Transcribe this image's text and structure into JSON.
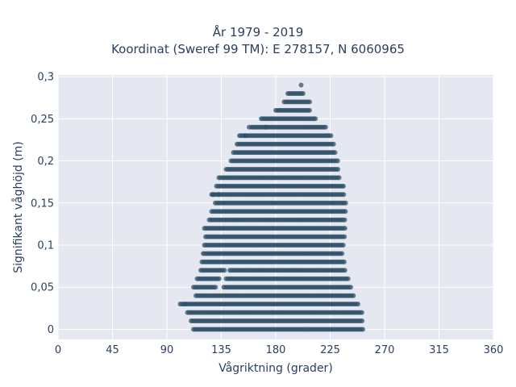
{
  "chart_data": {
    "type": "scatter",
    "title_line1": "År 1979 - 2019",
    "title_line2": "Koordinat (Sweref 99 TM): E 278157, N 6060965",
    "xlabel": "Vågriktning (grader)",
    "ylabel": "Signifikant våghöjd (m)",
    "xlim": [
      0,
      360
    ],
    "ylim": [
      -0.012,
      0.302
    ],
    "x_ticks": [
      0,
      45,
      90,
      135,
      180,
      225,
      270,
      315,
      360
    ],
    "x_tick_labels": [
      "0",
      "45",
      "90",
      "135",
      "180",
      "225",
      "270",
      "315",
      "360"
    ],
    "y_ticks": [
      0,
      0.05,
      0.1,
      0.15,
      0.2,
      0.25,
      0.3
    ],
    "y_tick_labels": [
      "0",
      "0,05",
      "0,1",
      "0,15",
      "0,2",
      "0,25",
      "0,3"
    ],
    "grid": true,
    "marker_color": "#2f5068",
    "plot_bg": "#e5e8f0",
    "rows": [
      {
        "y": 0.0,
        "x": [
          [
            112,
            252
          ]
        ]
      },
      {
        "y": 0.01,
        "x": [
          [
            110,
            252
          ]
        ]
      },
      {
        "y": 0.02,
        "x": [
          [
            107,
            252
          ]
        ]
      },
      {
        "y": 0.03,
        "x": [
          [
            101,
            248
          ]
        ]
      },
      {
        "y": 0.04,
        "x": [
          [
            114,
            245
          ]
        ]
      },
      {
        "y": 0.05,
        "x": [
          [
            112,
            131
          ],
          [
            137,
            243
          ]
        ]
      },
      {
        "y": 0.06,
        "x": [
          [
            115,
            134
          ],
          [
            139,
            240
          ]
        ]
      },
      {
        "y": 0.07,
        "x": [
          [
            118,
            138
          ],
          [
            142,
            238
          ]
        ]
      },
      {
        "y": 0.08,
        "x": [
          [
            119,
            237
          ]
        ]
      },
      {
        "y": 0.09,
        "x": [
          [
            120,
            236
          ]
        ]
      },
      {
        "y": 0.1,
        "x": [
          [
            121,
            237
          ]
        ]
      },
      {
        "y": 0.11,
        "x": [
          [
            122,
            238
          ]
        ]
      },
      {
        "y": 0.12,
        "x": [
          [
            121,
            238
          ]
        ]
      },
      {
        "y": 0.13,
        "x": [
          [
            125,
            238
          ]
        ]
      },
      {
        "y": 0.14,
        "x": [
          [
            127,
            238
          ]
        ]
      },
      {
        "y": 0.15,
        "x": [
          [
            130,
            238
          ]
        ]
      },
      {
        "y": 0.16,
        "x": [
          [
            127,
            237
          ]
        ]
      },
      {
        "y": 0.17,
        "x": [
          [
            131,
            236
          ]
        ]
      },
      {
        "y": 0.18,
        "x": [
          [
            133,
            233
          ]
        ]
      },
      {
        "y": 0.19,
        "x": [
          [
            139,
            232
          ]
        ]
      },
      {
        "y": 0.2,
        "x": [
          [
            143,
            232
          ]
        ]
      },
      {
        "y": 0.21,
        "x": [
          [
            145,
            229
          ]
        ]
      },
      {
        "y": 0.22,
        "x": [
          [
            148,
            228
          ]
        ]
      },
      {
        "y": 0.23,
        "x": [
          [
            150,
            226
          ]
        ]
      },
      {
        "y": 0.24,
        "x": [
          [
            161,
            222
          ]
        ]
      },
      {
        "y": 0.25,
        "x": [
          [
            168,
            213
          ]
        ]
      },
      {
        "y": 0.26,
        "x": [
          [
            180,
            209
          ]
        ]
      },
      {
        "y": 0.27,
        "x": [
          [
            187,
            208
          ]
        ]
      },
      {
        "y": 0.28,
        "x": [
          [
            190,
            203
          ]
        ]
      },
      {
        "y": 0.29,
        "x": [
          [
            201,
            201
          ]
        ]
      }
    ],
    "outliers": [
      [
        158,
        0.24
      ],
      [
        160,
        0.24
      ],
      [
        172,
        0.24
      ],
      [
        155,
        0.23
      ],
      [
        133,
        0.16
      ],
      [
        128,
        0.16
      ],
      [
        105,
        0.03
      ]
    ]
  }
}
